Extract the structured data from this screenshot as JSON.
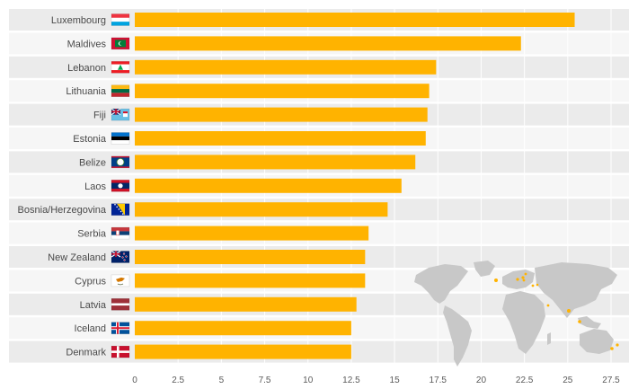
{
  "chart_data": {
    "type": "bar",
    "orientation": "horizontal",
    "title": "",
    "xlabel": "",
    "ylabel": "",
    "xlim": [
      0,
      27.5
    ],
    "x_ticks": [
      0,
      2.5,
      5,
      7.5,
      10,
      12.5,
      15,
      17.5,
      20,
      22.5,
      25,
      27.5
    ],
    "x_tick_labels": [
      "0",
      "2.5",
      "5",
      "7.5",
      "10",
      "12.5",
      "15",
      "17.5",
      "20",
      "22.5",
      "25",
      "27.5"
    ],
    "categories": [
      "Luxembourg",
      "Maldives",
      "Lebanon",
      "Lithuania",
      "Fiji",
      "Estonia",
      "Belize",
      "Laos",
      "Bosnia/Herzegovina",
      "Serbia",
      "New Zealand",
      "Cyprus",
      "Latvia",
      "Iceland",
      "Denmark"
    ],
    "flags": [
      "luxembourg-flag-icon",
      "maldives-flag-icon",
      "lebanon-flag-icon",
      "lithuania-flag-icon",
      "fiji-flag-icon",
      "estonia-flag-icon",
      "belize-flag-icon",
      "laos-flag-icon",
      "bosnia-herzegovina-flag-icon",
      "serbia-flag-icon",
      "new-zealand-flag-icon",
      "cyprus-flag-icon",
      "latvia-flag-icon",
      "iceland-flag-icon",
      "denmark-flag-icon"
    ],
    "values": [
      25.4,
      22.3,
      17.4,
      17.0,
      16.9,
      16.8,
      16.2,
      15.4,
      14.6,
      13.5,
      13.3,
      13.3,
      12.8,
      12.5,
      12.5
    ],
    "bar_color": "#FFB300",
    "grid": true
  },
  "colors": {
    "bar": "#FFB300",
    "band_dark": "#ebebeb",
    "band_light": "#f6f6f6",
    "map_land": "#c8c8c8",
    "map_highlight": "#FFB300"
  },
  "map_icon": "world-map-icon"
}
